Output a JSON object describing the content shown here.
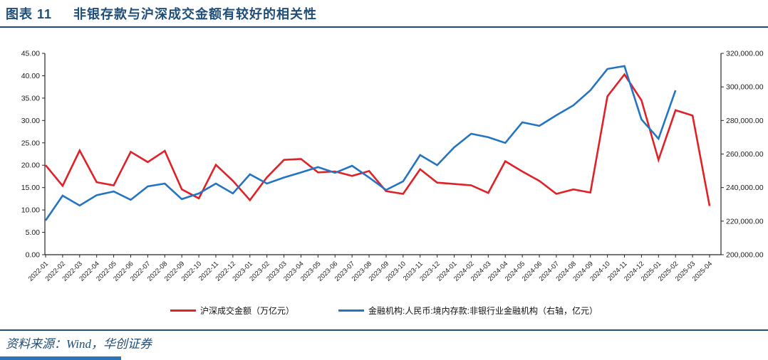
{
  "figure": {
    "label": "图表 11",
    "title": "非银存款与沪深成交金额有较好的相关性",
    "source": "资料来源：Wind，华创证券"
  },
  "colors": {
    "navy": "#1F4E79",
    "red_series": "#E02127",
    "blue_series": "#2374C2",
    "axis_line": "#262626",
    "tick_text": "#1a1a1a",
    "bottom_bar": "#2E74B5"
  },
  "chart_data": {
    "type": "line",
    "title": "",
    "grid": false,
    "legend_position": "bottom",
    "categories": [
      "2022-01",
      "2022-02",
      "2022-03",
      "2022-04",
      "2022-05",
      "2022-06",
      "2022-07",
      "2022-08",
      "2022-09",
      "2022-10",
      "2022-11",
      "2022-12",
      "2023-01",
      "2023-02",
      "2023-03",
      "2023-04",
      "2023-05",
      "2023-06",
      "2023-07",
      "2023-08",
      "2023-09",
      "2023-10",
      "2023-11",
      "2023-12",
      "2024-01",
      "2024-02",
      "2024-03",
      "2024-04",
      "2024-05",
      "2024-06",
      "2024-07",
      "2024-08",
      "2024-09",
      "2024-10",
      "2024-11",
      "2024-12",
      "2025-01",
      "2025-02",
      "2025-03",
      "2025-04"
    ],
    "series": [
      {
        "name": "沪深成交金额（万亿元）",
        "axis": "left",
        "color_key": "red_series",
        "values": [
          20.0,
          15.4,
          23.3,
          16.2,
          15.5,
          23.0,
          20.7,
          23.2,
          14.6,
          12.6,
          20.1,
          16.5,
          12.2,
          17.3,
          21.2,
          21.4,
          18.4,
          18.6,
          17.6,
          18.7,
          14.2,
          13.6,
          19.1,
          16.1,
          15.8,
          15.5,
          13.8,
          20.9,
          18.6,
          16.5,
          13.6,
          14.6,
          13.9,
          35.4,
          40.3,
          34.5,
          21.2,
          32.3,
          31.1,
          10.9
        ]
      },
      {
        "name": "金融机构:人民币:境内存款:非银行业金融机构（右轴，亿元）",
        "axis": "right",
        "color_key": "blue_series",
        "values": [
          220400,
          235200,
          229300,
          235500,
          237700,
          232700,
          240700,
          242400,
          233100,
          236500,
          242400,
          236500,
          247900,
          242400,
          246000,
          249000,
          252200,
          248800,
          253000,
          246000,
          238600,
          243700,
          259400,
          253400,
          264000,
          272100,
          270000,
          266600,
          278900,
          276800,
          283100,
          289000,
          298000,
          310700,
          312400,
          280600,
          269100,
          298000,
          null,
          null
        ]
      }
    ],
    "left_axis": {
      "min": 0,
      "max": 45,
      "step": 5,
      "tick_labels": [
        "0.00",
        "5.00",
        "10.00",
        "15.00",
        "20.00",
        "25.00",
        "30.00",
        "35.00",
        "40.00",
        "45.00"
      ]
    },
    "right_axis": {
      "min": 200000,
      "max": 320000,
      "step": 20000,
      "tick_labels": [
        "200,000.00",
        "220,000.00",
        "240,000.00",
        "260,000.00",
        "280,000.00",
        "300,000.00",
        "320,000.00"
      ]
    }
  }
}
